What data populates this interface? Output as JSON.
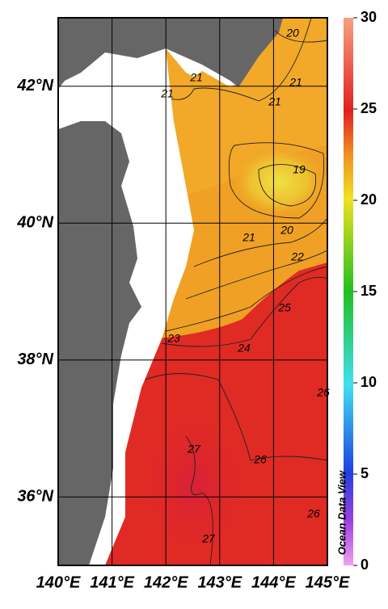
{
  "map": {
    "xlim": [
      140,
      145
    ],
    "ylim": [
      35,
      43
    ],
    "lon_ticks": [
      {
        "value": 140,
        "label": "140°E"
      },
      {
        "value": 141,
        "label": "141°E"
      },
      {
        "value": 142,
        "label": "142°E"
      },
      {
        "value": 143,
        "label": "143°E"
      },
      {
        "value": 144,
        "label": "144°E"
      },
      {
        "value": 145,
        "label": "145°E"
      }
    ],
    "lat_ticks": [
      {
        "value": 36,
        "label": "36°N"
      },
      {
        "value": 38,
        "label": "38°N"
      },
      {
        "value": 40,
        "label": "40°N"
      },
      {
        "value": 42,
        "label": "42°N"
      }
    ],
    "contour_labels": [
      20,
      21,
      21,
      21,
      21,
      19,
      20,
      21,
      22,
      25,
      23,
      24,
      26,
      27,
      26,
      26,
      27
    ],
    "colorbar": {
      "lim": [
        0,
        30
      ],
      "ticks": [
        0,
        5,
        10,
        15,
        20,
        25,
        30
      ],
      "label": "Ocean Data View"
    }
  }
}
